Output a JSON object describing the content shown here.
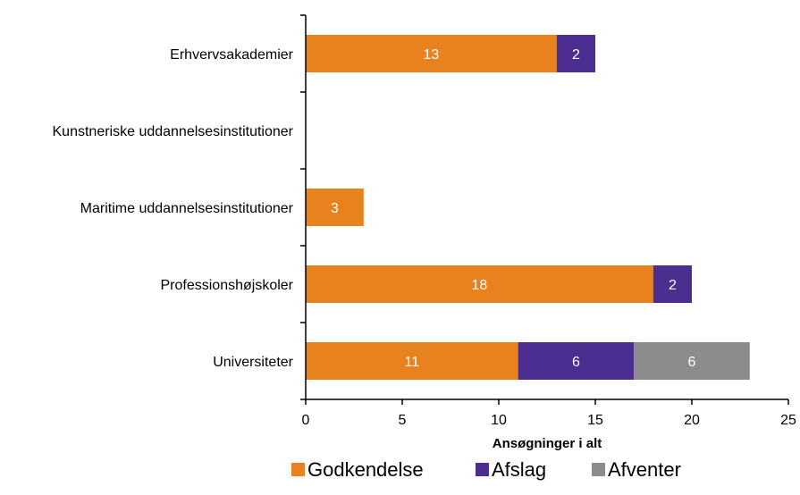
{
  "chart_data": {
    "type": "bar",
    "orientation": "horizontal",
    "stacked": true,
    "title": "",
    "categories": [
      "Erhvervsakademier",
      "Kunstneriske uddannelsesinstitutioner",
      "Maritime uddannelsesinstitutioner",
      "Professionshøjskoler",
      "Universiteter"
    ],
    "series": [
      {
        "name": "Godkendelse",
        "color": "#e8821e",
        "values": [
          13,
          0,
          3,
          18,
          11
        ]
      },
      {
        "name": "Afslag",
        "color": "#4b2e8f",
        "values": [
          2,
          0,
          0,
          2,
          6
        ]
      },
      {
        "name": "Afventer",
        "color": "#8c8c8c",
        "values": [
          0,
          0,
          0,
          0,
          6
        ]
      }
    ],
    "xlabel": "Ansøgninger i alt",
    "ylabel": "",
    "xlim": [
      0,
      25
    ],
    "xticks": [
      "0",
      "5",
      "10",
      "15",
      "20",
      "25"
    ],
    "grid": false,
    "legend_position": "bottom"
  }
}
